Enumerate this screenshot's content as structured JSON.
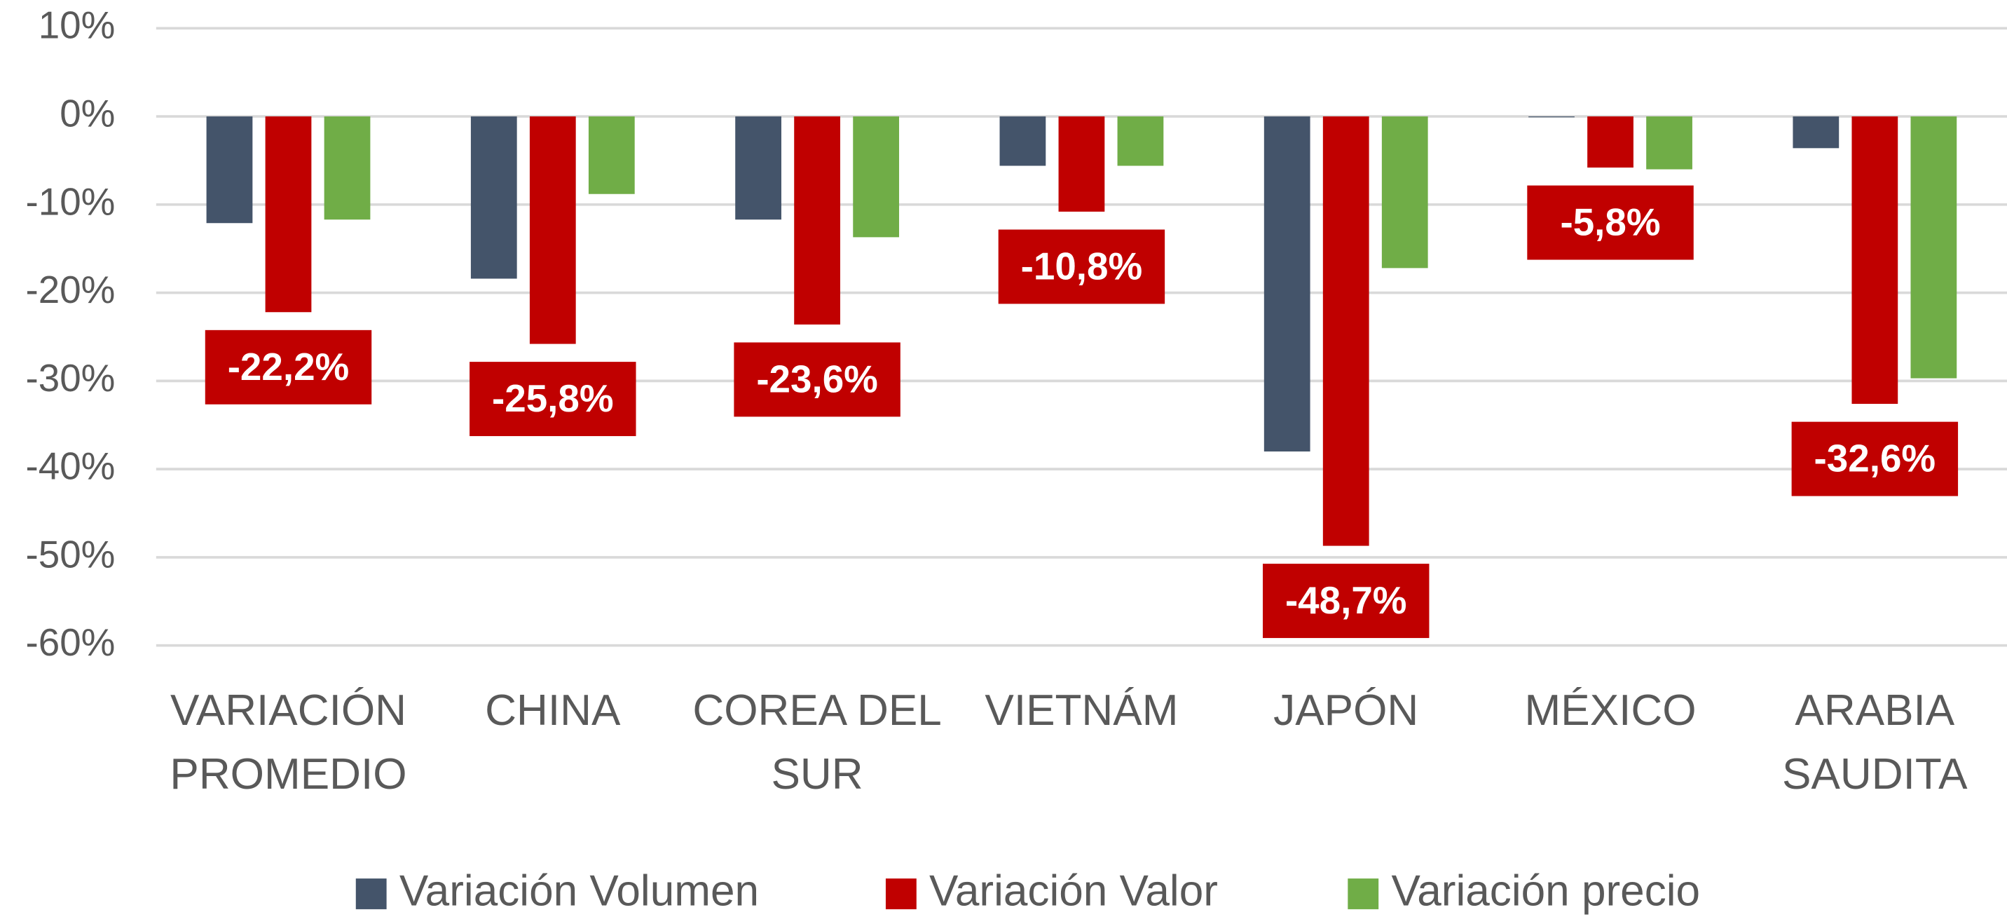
{
  "chart_data": {
    "type": "bar",
    "categories": [
      "VARIACIÓN PROMEDIO",
      "CHINA",
      "COREA DEL SUR",
      "VIETNÁM",
      "JAPÓN",
      "MÉXICO",
      "ARABIA SAUDITA"
    ],
    "series": [
      {
        "name": "Variación Volumen",
        "color": "#44546a",
        "values": [
          -12.1,
          -18.4,
          -11.7,
          -5.6,
          -38.0,
          -0.1,
          -3.6
        ]
      },
      {
        "name": "Variación Valor",
        "color": "#c00000",
        "values": [
          -22.2,
          -25.8,
          -23.6,
          -10.8,
          -48.7,
          -5.8,
          -32.6
        ],
        "value_labels": [
          "-22,2%",
          "-25,8%",
          "-23,6%",
          "-10,8%",
          "-48,7%",
          "-5,8%",
          "-32,6%"
        ]
      },
      {
        "name": "Variación precio",
        "color": "#70ad47",
        "values": [
          -11.7,
          -8.8,
          -13.7,
          -5.6,
          -17.2,
          -6.0,
          -29.7
        ]
      }
    ],
    "ylim": [
      10,
      -60
    ],
    "yticks": [
      {
        "value": 10,
        "label": "10%"
      },
      {
        "value": 0,
        "label": "0%"
      },
      {
        "value": -10,
        "label": "-10%"
      },
      {
        "value": -20,
        "label": "-20%"
      },
      {
        "value": -30,
        "label": "-30%"
      },
      {
        "value": -40,
        "label": "-40%"
      },
      {
        "value": -50,
        "label": "-50%"
      },
      {
        "value": -60,
        "label": "-60%"
      }
    ],
    "grid": true,
    "legend": "bottom"
  }
}
